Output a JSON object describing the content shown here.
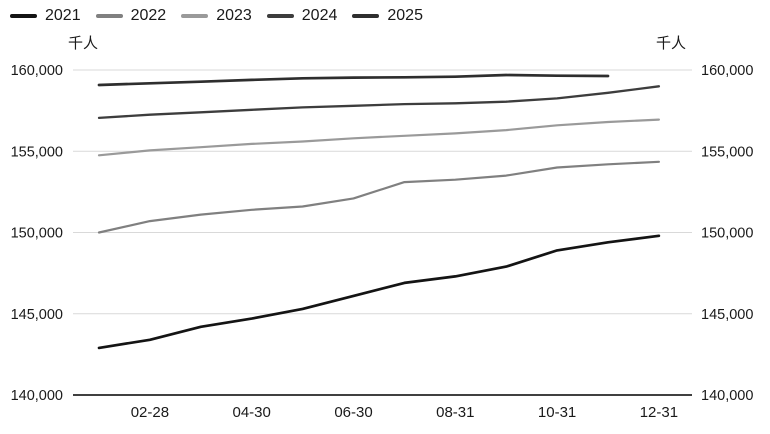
{
  "chart_data": {
    "type": "line",
    "title": "",
    "unit_left": "千人",
    "unit_right": "千人",
    "legend_position": "top-left",
    "grid": "horizontal",
    "x_months": [
      "01-31",
      "02-28",
      "03-31",
      "04-30",
      "05-31",
      "06-30",
      "07-31",
      "08-31",
      "09-30",
      "10-31",
      "11-30",
      "12-31"
    ],
    "x_tick_labels": [
      "02-28",
      "04-30",
      "06-30",
      "08-31",
      "10-31",
      "12-31"
    ],
    "x_tick_month_indices": [
      1,
      3,
      5,
      7,
      9,
      11
    ],
    "ylim": [
      140000,
      160000
    ],
    "y_ticks": [
      140000,
      145000,
      150000,
      155000,
      160000
    ],
    "y_tick_labels": [
      "140,000",
      "145,000",
      "150,000",
      "155,000",
      "160,000"
    ],
    "colors": {
      "grid": "#d9d9d9",
      "axis": "#404040",
      "text": "#1a1a1a"
    },
    "series": [
      {
        "name": "2021",
        "color": "#141414",
        "values": [
          142900,
          143400,
          144200,
          144700,
          145300,
          146100,
          146900,
          147300,
          147900,
          148900,
          149400,
          149800
        ]
      },
      {
        "name": "2022",
        "color": "#808080",
        "values": [
          150000,
          150700,
          151100,
          151400,
          151600,
          152100,
          153100,
          153250,
          153500,
          154000,
          154200,
          154350
        ]
      },
      {
        "name": "2023",
        "color": "#9a9a9a",
        "values": [
          154750,
          155050,
          155250,
          155450,
          155600,
          155800,
          155950,
          156100,
          156300,
          156600,
          156800,
          156950
        ]
      },
      {
        "name": "2024",
        "color": "#3d3d3d",
        "values": [
          157050,
          157250,
          157400,
          157550,
          157700,
          157800,
          157900,
          157950,
          158050,
          158250,
          158600,
          159000
        ]
      },
      {
        "name": "2025",
        "color": "#2e2e2e",
        "values": [
          159080,
          159180,
          159280,
          159390,
          159490,
          159530,
          159550,
          159590,
          159690,
          159650,
          159630
        ]
      }
    ]
  }
}
